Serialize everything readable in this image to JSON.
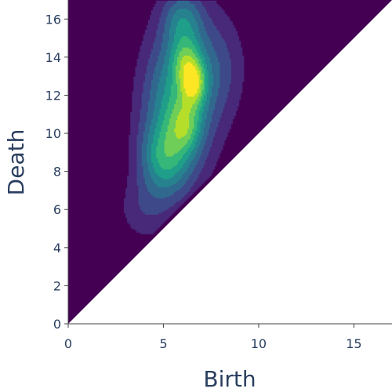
{
  "chart_data": {
    "type": "heatmap",
    "subtype": "filled-contour density (persistence diagram)",
    "title": "",
    "xlabel": "Birth",
    "ylabel": "Death",
    "xlim": [
      0,
      17
    ],
    "ylim": [
      0,
      17
    ],
    "x_ticks": [
      0,
      5,
      10,
      15
    ],
    "y_ticks": [
      0,
      2,
      4,
      6,
      8,
      10,
      12,
      14,
      16
    ],
    "grid": false,
    "legend": "none",
    "region": "upper triangle above the diagonal Death = Birth; area below the diagonal left blank",
    "colorscale": [
      "#440154",
      "#482878",
      "#3e4989",
      "#31688e",
      "#26828e",
      "#1f9e89",
      "#35b779",
      "#6ece58",
      "#b5de2b",
      "#fde725"
    ],
    "density_peaks": [
      {
        "birth": 6.6,
        "death": 12.6,
        "level": 1.0
      },
      {
        "birth": 6.2,
        "death": 13.8,
        "level": 0.75
      },
      {
        "birth": 6.2,
        "death": 10.4,
        "level": 0.6
      },
      {
        "birth": 5.0,
        "death": 8.6,
        "level": 0.55
      },
      {
        "birth": 6.0,
        "death": 16.0,
        "level": 0.55
      }
    ]
  }
}
